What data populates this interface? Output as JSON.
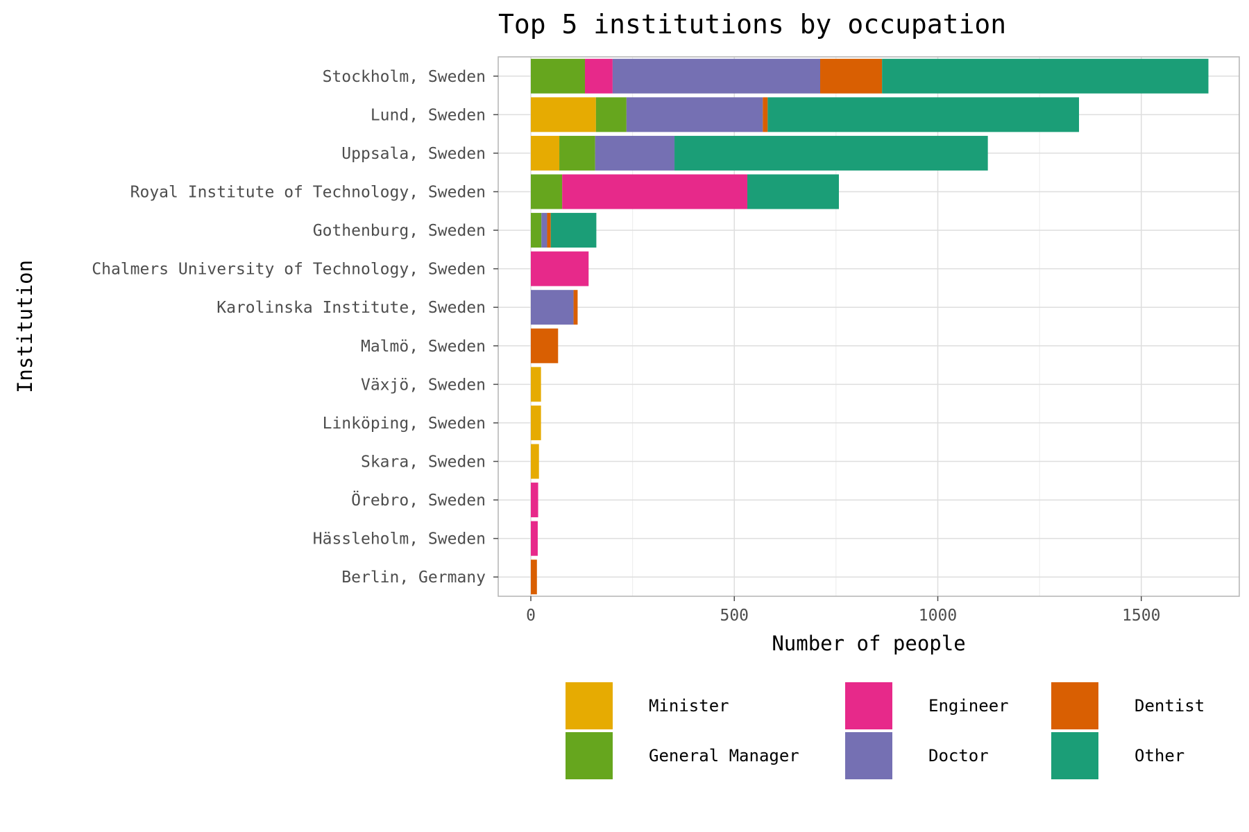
{
  "chart_data": {
    "type": "bar",
    "orientation": "horizontal",
    "stacked": true,
    "title": "Top 5 institutions by occupation",
    "xlabel": "Number of people",
    "ylabel": "Institution",
    "xlim": [
      0,
      1700
    ],
    "x_ticks": [
      0,
      500,
      1000,
      1500
    ],
    "grid": true,
    "legend_position": "bottom",
    "categories": [
      "Stockholm, Sweden",
      "Lund, Sweden",
      "Uppsala, Sweden",
      "Royal Institute of Technology, Sweden",
      "Gothenburg, Sweden",
      "Chalmers University of Technology, Sweden",
      "Karolinska Institute, Sweden",
      "Malmö, Sweden",
      "Växjö, Sweden",
      "Linköping, Sweden",
      "Skara, Sweden",
      "Örebro, Sweden",
      "Hässleholm, Sweden",
      "Berlin, Germany"
    ],
    "series": [
      {
        "name": "Minister",
        "color": "#e6ab02",
        "values": [
          0,
          160,
          70,
          0,
          0,
          0,
          0,
          0,
          25,
          25,
          20,
          0,
          0,
          0
        ]
      },
      {
        "name": "General Manager",
        "color": "#66a61e",
        "values": [
          133,
          75,
          88,
          77,
          26,
          0,
          0,
          0,
          0,
          0,
          0,
          0,
          0,
          0
        ]
      },
      {
        "name": "Engineer",
        "color": "#e7298a",
        "values": [
          68,
          0,
          0,
          455,
          0,
          142,
          0,
          0,
          0,
          0,
          0,
          18,
          17,
          0
        ]
      },
      {
        "name": "Doctor",
        "color": "#7570b3",
        "values": [
          510,
          335,
          195,
          0,
          14,
          0,
          105,
          0,
          0,
          0,
          0,
          0,
          0,
          0
        ]
      },
      {
        "name": "Dentist",
        "color": "#d95f02",
        "values": [
          152,
          12,
          0,
          0,
          9,
          0,
          10,
          67,
          0,
          0,
          0,
          0,
          0,
          15
        ]
      },
      {
        "name": "Other",
        "color": "#1b9e77",
        "values": [
          802,
          765,
          770,
          225,
          112,
          0,
          0,
          0,
          0,
          0,
          0,
          0,
          0,
          0
        ]
      }
    ]
  }
}
